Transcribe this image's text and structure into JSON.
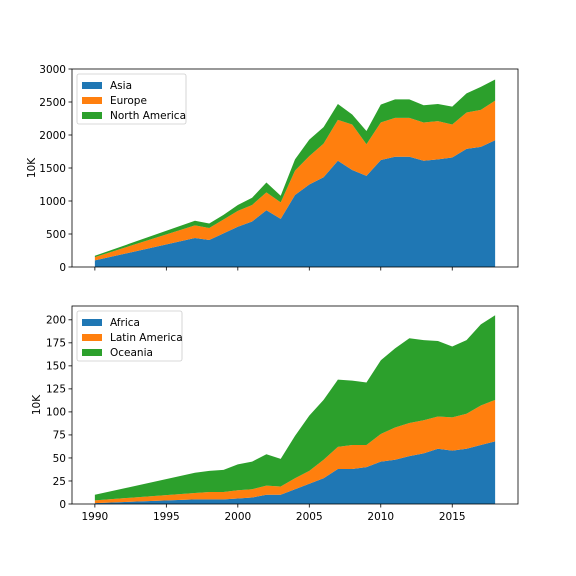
{
  "chart_data": [
    {
      "type": "area",
      "stacked": true,
      "ylabel": "10K",
      "xlim": [
        1988.4,
        2019.6
      ],
      "ylim": [
        0,
        3000
      ],
      "yticks": [
        0,
        500,
        1000,
        1500,
        2000,
        2500,
        3000
      ],
      "xticks": [
        1990,
        1995,
        2000,
        2005,
        2010,
        2015
      ],
      "show_xtick_labels": false,
      "legend_position": "upper-left",
      "x": [
        1990,
        1997,
        1998,
        1999,
        2000,
        2001,
        2002,
        2003,
        2004,
        2005,
        2006,
        2007,
        2008,
        2009,
        2010,
        2011,
        2012,
        2013,
        2014,
        2015,
        2016,
        2017,
        2018
      ],
      "series": [
        {
          "name": "Asia",
          "color": "#1f77b4",
          "values": [
            100,
            440,
            410,
            510,
            610,
            690,
            860,
            730,
            1090,
            1250,
            1360,
            1610,
            1470,
            1380,
            1620,
            1670,
            1670,
            1610,
            1630,
            1660,
            1790,
            1820,
            1920
          ]
        },
        {
          "name": "Europe",
          "color": "#ff7f0e",
          "values": [
            50,
            190,
            180,
            210,
            240,
            250,
            270,
            250,
            370,
            430,
            510,
            620,
            690,
            480,
            570,
            590,
            590,
            580,
            580,
            500,
            550,
            560,
            600
          ]
        },
        {
          "name": "North America",
          "color": "#2ca02c",
          "values": [
            20,
            70,
            70,
            70,
            90,
            110,
            150,
            100,
            170,
            250,
            250,
            240,
            150,
            200,
            270,
            280,
            280,
            260,
            260,
            270,
            290,
            350,
            320
          ]
        }
      ]
    },
    {
      "type": "area",
      "stacked": true,
      "ylabel": "10K",
      "xlim": [
        1988.4,
        2019.6
      ],
      "ylim": [
        0,
        215
      ],
      "yticks": [
        0,
        25,
        50,
        75,
        100,
        125,
        150,
        175,
        200
      ],
      "xticks": [
        1990,
        1995,
        2000,
        2005,
        2010,
        2015
      ],
      "show_xtick_labels": true,
      "legend_position": "upper-left",
      "x": [
        1990,
        1997,
        1998,
        1999,
        2000,
        2001,
        2002,
        2003,
        2004,
        2005,
        2006,
        2007,
        2008,
        2009,
        2010,
        2011,
        2012,
        2013,
        2014,
        2015,
        2016,
        2017,
        2018
      ],
      "series": [
        {
          "name": "Africa",
          "color": "#1f77b4",
          "values": [
            1,
            5,
            5,
            5,
            6,
            7,
            10,
            10,
            16,
            22,
            28,
            38,
            38,
            40,
            46,
            48,
            52,
            55,
            60,
            58,
            60,
            64,
            68
          ]
        },
        {
          "name": "Latin America",
          "color": "#ff7f0e",
          "values": [
            3,
            7,
            8,
            8,
            9,
            9,
            10,
            9,
            12,
            14,
            20,
            24,
            26,
            24,
            30,
            35,
            36,
            36,
            35,
            36,
            38,
            43,
            45
          ]
        },
        {
          "name": "Oceania",
          "color": "#2ca02c",
          "values": [
            6,
            22,
            23,
            24,
            28,
            30,
            34,
            30,
            46,
            60,
            65,
            73,
            70,
            68,
            80,
            86,
            92,
            87,
            82,
            77,
            80,
            88,
            92
          ]
        }
      ]
    }
  ]
}
